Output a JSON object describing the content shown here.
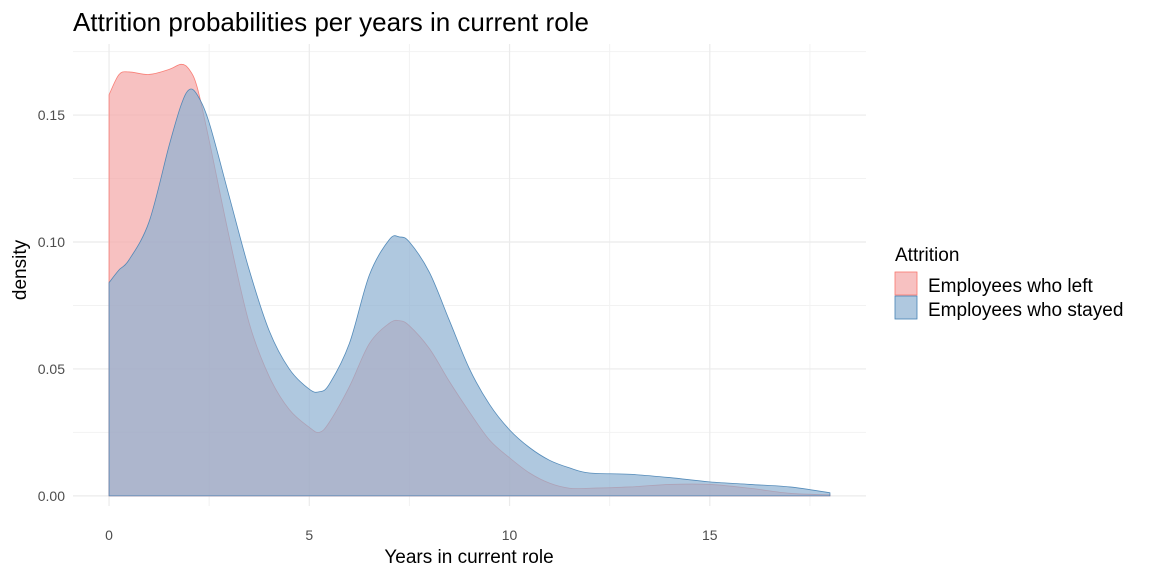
{
  "chart_data": {
    "type": "area",
    "title": "Attrition probabilities per years in current role",
    "xlabel": "Years in current role",
    "ylabel": "density",
    "xlim": [
      -0.9,
      18.9
    ],
    "ylim": [
      -0.004,
      0.178
    ],
    "x_ticks": [
      0,
      5,
      10,
      15
    ],
    "y_ticks": [
      0.0,
      0.05,
      0.1,
      0.15
    ],
    "y_tick_labels": [
      "0.00",
      "0.05",
      "0.10",
      "0.15"
    ],
    "grid": true,
    "legend": {
      "title": "Attrition",
      "position": "right"
    },
    "series": [
      {
        "name": "Employees who left",
        "color": "#F8766D",
        "fill": "#f4a6a6",
        "x": [
          0,
          0.25,
          0.5,
          1,
          1.5,
          1.8,
          2,
          2.2,
          2.5,
          3,
          3.5,
          4,
          4.5,
          5,
          5.25,
          5.5,
          6,
          6.5,
          7,
          7.25,
          7.5,
          8,
          8.5,
          9,
          9.5,
          10,
          10.5,
          11,
          11.5,
          12,
          13,
          14,
          15,
          16,
          17,
          18
        ],
        "y": [
          0.158,
          0.166,
          0.167,
          0.166,
          0.168,
          0.17,
          0.168,
          0.161,
          0.14,
          0.102,
          0.068,
          0.047,
          0.034,
          0.027,
          0.025,
          0.029,
          0.043,
          0.06,
          0.068,
          0.069,
          0.067,
          0.058,
          0.045,
          0.033,
          0.022,
          0.015,
          0.009,
          0.005,
          0.003,
          0.003,
          0.0035,
          0.0045,
          0.0045,
          0.003,
          0.001,
          0.0004
        ]
      },
      {
        "name": "Employees who stayed",
        "color": "#4682B4",
        "fill": "#8db0d2",
        "x": [
          0,
          0.25,
          0.5,
          1,
          1.5,
          1.8,
          2,
          2.2,
          2.5,
          3,
          3.5,
          4,
          4.5,
          5,
          5.25,
          5.5,
          6,
          6.5,
          7,
          7.25,
          7.5,
          8,
          8.5,
          9,
          9.5,
          10,
          10.5,
          11,
          11.5,
          12,
          13,
          14,
          15,
          16,
          17,
          18
        ],
        "y": [
          0.084,
          0.089,
          0.093,
          0.108,
          0.138,
          0.154,
          0.16,
          0.158,
          0.147,
          0.118,
          0.089,
          0.065,
          0.05,
          0.042,
          0.041,
          0.044,
          0.06,
          0.087,
          0.101,
          0.102,
          0.1,
          0.088,
          0.069,
          0.05,
          0.036,
          0.026,
          0.019,
          0.014,
          0.011,
          0.009,
          0.0085,
          0.0072,
          0.0055,
          0.0045,
          0.0035,
          0.0012
        ]
      }
    ]
  }
}
